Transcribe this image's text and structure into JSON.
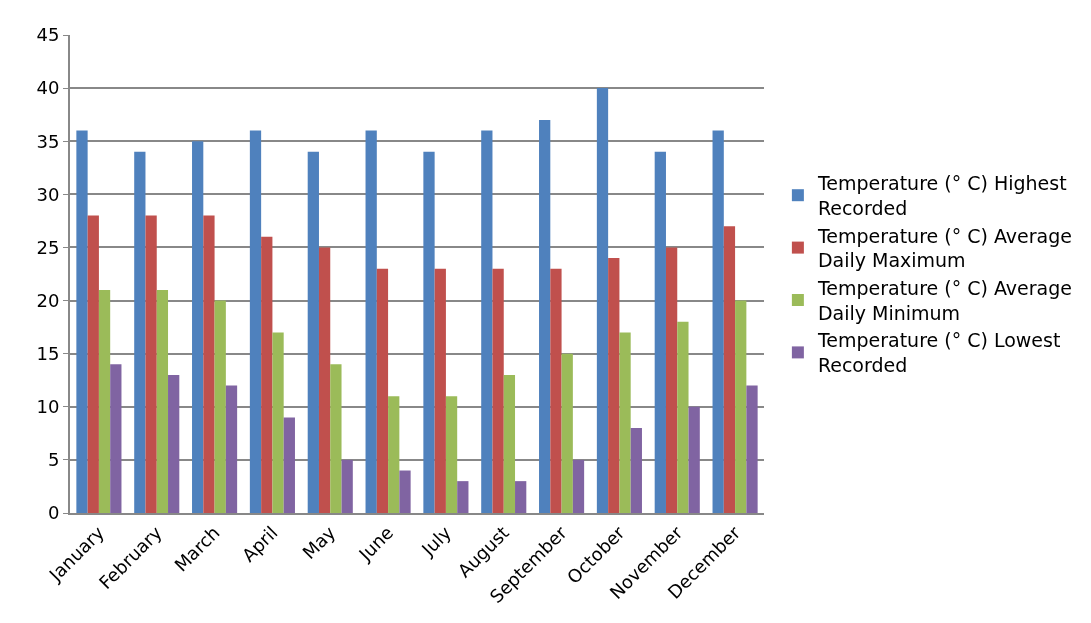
{
  "chart_data": {
    "type": "bar",
    "categories": [
      "January",
      "February",
      "March",
      "April",
      "May",
      "June",
      "July",
      "August",
      "September",
      "October",
      "November",
      "December"
    ],
    "series": [
      {
        "name": "Temperature (° C) Highest Recorded",
        "color": "#4f81bd",
        "values": [
          36,
          34,
          35,
          36,
          34,
          36,
          34,
          36,
          37,
          40,
          34,
          36
        ]
      },
      {
        "name": "Temperature (° C) Average Daily Maximum",
        "color": "#c0504d",
        "values": [
          28,
          28,
          28,
          26,
          25,
          23,
          23,
          23,
          23,
          24,
          25,
          27
        ]
      },
      {
        "name": "Temperature (° C) Average Daily Minimum",
        "color": "#9bbb59",
        "values": [
          21,
          21,
          20,
          17,
          14,
          11,
          11,
          13,
          15,
          17,
          18,
          20
        ]
      },
      {
        "name": "Temperature (° C) Lowest Recorded",
        "color": "#8064a2",
        "values": [
          14,
          13,
          12,
          9,
          5,
          4,
          3,
          3,
          5,
          8,
          10,
          12
        ]
      }
    ],
    "ylim": [
      0,
      45
    ],
    "yticks": [
      0,
      5,
      10,
      15,
      20,
      25,
      30,
      35,
      40,
      45
    ],
    "grid": "y",
    "legend": "right"
  }
}
